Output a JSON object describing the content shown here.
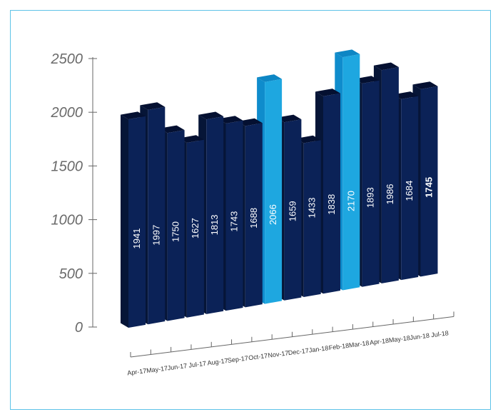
{
  "chart_data": {
    "type": "bar",
    "title": "",
    "xlabel": "",
    "ylabel": "",
    "ylim": [
      0,
      2500
    ],
    "yticks": [
      0,
      500,
      1000,
      1500,
      2000,
      2500
    ],
    "grid": false,
    "legend": "none",
    "categories": [
      "Apr-17",
      "May-17",
      "Jun-17",
      "Jul-17",
      "Aug-17",
      "Sep-17",
      "Oct-17",
      "Nov-17",
      "Dec-17",
      "Jan-18",
      "Feb-18",
      "Mar-18",
      "Apr-18",
      "May-18",
      "Jun-18",
      "Jul-18"
    ],
    "values": [
      1941,
      1997,
      1750,
      1627,
      1813,
      1743,
      1688,
      2066,
      1659,
      1433,
      1838,
      2170,
      1893,
      1986,
      1684,
      1745
    ],
    "highlight_indices": [
      7,
      11
    ],
    "colors": {
      "bar_front": "#0b2257",
      "bar_side": "#061537",
      "bar_top": "#041031",
      "highlight_front": "#1ea7e0",
      "highlight_side": "#0f8ccc",
      "highlight_top": "#0d86c4",
      "frame_border": "#5ec3e8",
      "axis": "#666666",
      "tick_text": "#6a6a6a",
      "label_text": "#ffffff"
    }
  }
}
